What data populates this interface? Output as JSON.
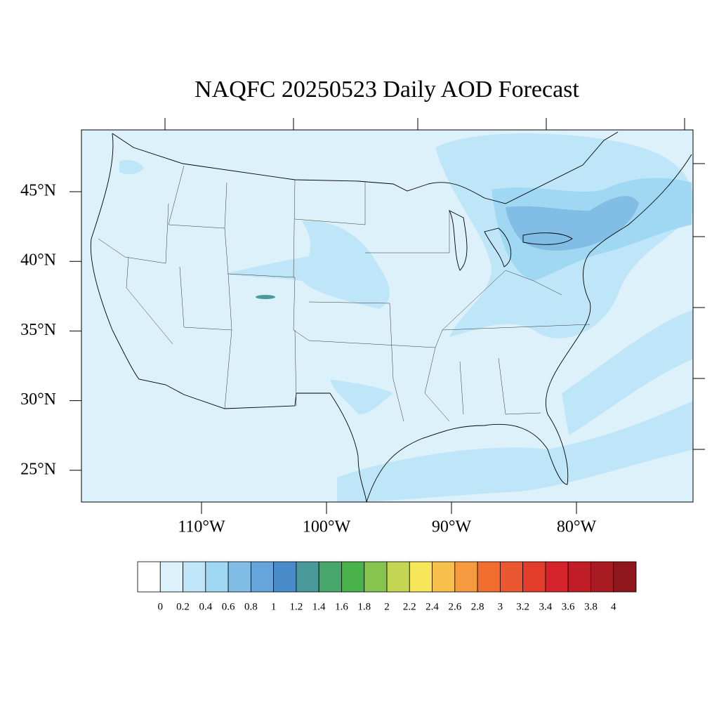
{
  "map": {
    "title": "NAQFC 20250523 Daily AOD Forecast",
    "lat_labels": [
      "45°N",
      "40°N",
      "35°N",
      "30°N",
      "25°N"
    ],
    "lon_labels": [
      "110°W",
      "100°W",
      "90°W",
      "80°W"
    ],
    "colorbar": {
      "levels": [
        0,
        0.2,
        0.4,
        0.6,
        0.8,
        1,
        1.2,
        1.4,
        1.6,
        1.8,
        2,
        2.2,
        2.4,
        2.6,
        2.8,
        3,
        3.2,
        3.4,
        3.6,
        3.8,
        4
      ],
      "colors": [
        "#ffffff",
        "#ddf1fb",
        "#bfe6f8",
        "#a0d8f3",
        "#82bde6",
        "#66a5db",
        "#4a8bca",
        "#4a9a9c",
        "#46a66c",
        "#4ab24a",
        "#86c44f",
        "#c3d653",
        "#f8e65a",
        "#f7bf4b",
        "#f69a3f",
        "#f26e2f",
        "#eb5730",
        "#e23d2a",
        "#d6222b",
        "#c01e27",
        "#a81b22",
        "#8f161d"
      ]
    }
  }
}
